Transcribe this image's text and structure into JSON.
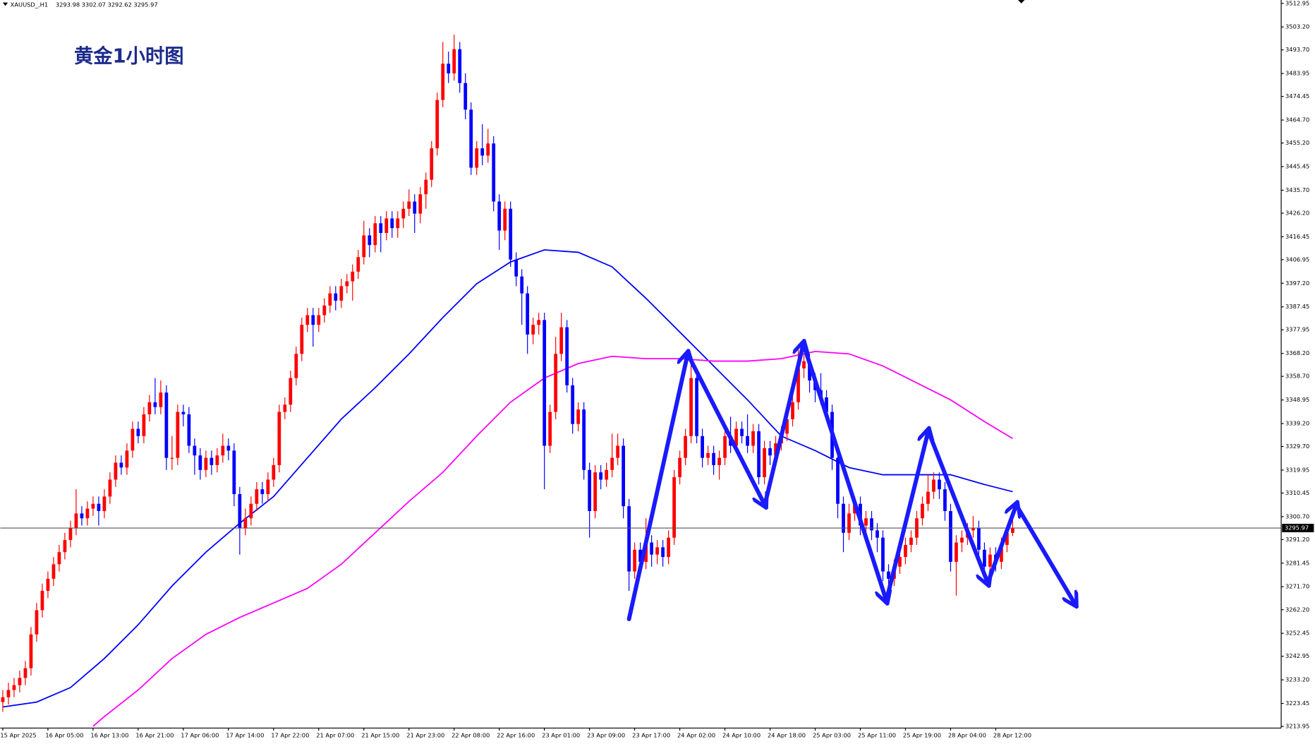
{
  "chart_data": {
    "type": "candlestick",
    "symbol": "XAUUSD_,H1",
    "title": "黄金1小时图",
    "categories": [
      "15 Apr 2025",
      null,
      null,
      null,
      null,
      null,
      null,
      null,
      "16 Apr 05:00",
      null,
      null,
      null,
      null,
      null,
      null,
      null,
      "16 Apr 13:00",
      null,
      null,
      null,
      null,
      null,
      null,
      null,
      "16 Apr 21:00",
      null,
      null,
      null,
      null,
      null,
      null,
      null,
      "17 Apr 06:00",
      null,
      null,
      null,
      null,
      null,
      null,
      null,
      "17 Apr 14:00",
      null,
      null,
      null,
      null,
      null,
      null,
      null,
      "17 Apr 22:00",
      null,
      null,
      null,
      null,
      null,
      null,
      null,
      "21 Apr 07:00",
      null,
      null,
      null,
      null,
      null,
      null,
      null,
      "21 Apr 15:00",
      null,
      null,
      null,
      null,
      null,
      null,
      null,
      "21 Apr 23:00",
      null,
      null,
      null,
      null,
      null,
      null,
      null,
      "22 Apr 08:00",
      null,
      null,
      null,
      null,
      null,
      null,
      null,
      "22 Apr 16:00",
      null,
      null,
      null,
      null,
      null,
      null,
      null,
      "23 Apr 01:00",
      null,
      null,
      null,
      null,
      null,
      null,
      null,
      "23 Apr 09:00",
      null,
      null,
      null,
      null,
      null,
      null,
      null,
      "23 Apr 17:00",
      null,
      null,
      null,
      null,
      null,
      null,
      null,
      "24 Apr 02:00",
      null,
      null,
      null,
      null,
      null,
      null,
      null,
      "24 Apr 10:00",
      null,
      null,
      null,
      null,
      null,
      null,
      null,
      "24 Apr 18:00",
      null,
      null,
      null,
      null,
      null,
      null,
      null,
      "25 Apr 03:00",
      null,
      null,
      null,
      null,
      null,
      null,
      null,
      "25 Apr 11:00",
      null,
      null,
      null,
      null,
      null,
      null,
      null,
      "25 Apr 19:00",
      null,
      null,
      null,
      null,
      null,
      null,
      null,
      "28 Apr 04:00",
      null,
      null,
      null,
      null,
      null,
      null,
      null,
      "28 Apr 12:00",
      null,
      null,
      null
    ],
    "open": [
      3224,
      3226,
      3229,
      3231,
      3234,
      3238,
      3252,
      3262,
      3270,
      3275,
      3281,
      3286,
      3291,
      3296,
      3302,
      3300,
      3304,
      3306,
      3303,
      3309,
      3316,
      3323,
      3321,
      3328,
      3337,
      3334,
      3343,
      3348,
      3346,
      3352,
      3325,
      3325,
      3344,
      3343,
      3330,
      3326,
      3320,
      3325,
      3322,
      3326,
      3330,
      3328,
      3310,
      3296,
      3300,
      3306,
      3312,
      3310,
      3316,
      3322,
      3344,
      3347,
      3358,
      3368,
      3380,
      3384,
      3380,
      3384,
      3388,
      3393,
      3390,
      3396,
      3398,
      3402,
      3408,
      3417,
      3413,
      3422,
      3418,
      3424,
      3420,
      3424,
      3428,
      3431,
      3426,
      3434,
      3440,
      3453,
      3473,
      3488,
      3484,
      3494,
      3480,
      3469,
      3445,
      3453,
      3450,
      3455,
      3431,
      3419,
      3428,
      3407,
      3400,
      3393,
      3376,
      3380,
      3382,
      3330,
      3344,
      3368,
      3379,
      3355,
      3339,
      3345,
      3320,
      3303,
      3319,
      3316,
      3320,
      3325,
      3330,
      3305,
      3278,
      3287,
      3282,
      3290,
      3285,
      3288,
      3284,
      3292,
      3317,
      3325,
      3334,
      3358,
      3334,
      3325,
      3327,
      3322,
      3325,
      3334,
      3330,
      3337,
      3334,
      3330,
      3336,
      3317,
      3329,
      3326,
      3331,
      3335,
      3341,
      3348,
      3362,
      3365,
      3357,
      3353,
      3350,
      3344,
      3325,
      3306,
      3294,
      3302,
      3306,
      3297,
      3300,
      3295,
      3292,
      3278,
      3275,
      3280,
      3284,
      3289,
      3292,
      3300,
      3306,
      3311,
      3316,
      3312,
      3303,
      3282,
      3290,
      3292,
      3295,
      3296,
      3287,
      3280,
      3285,
      3282,
      3289,
      3293.98
    ],
    "high": [
      3229,
      3232,
      3234,
      3237,
      3241,
      3255,
      3265,
      3273,
      3278,
      3284,
      3289,
      3294,
      3299,
      3312,
      3305,
      3307,
      3309,
      3309,
      3312,
      3319,
      3326,
      3326,
      3331,
      3340,
      3340,
      3346,
      3351,
      3358,
      3357,
      3355,
      3334,
      3347,
      3347,
      3346,
      3333,
      3329,
      3328,
      3328,
      3329,
      3335,
      3333,
      3331,
      3313,
      3304,
      3309,
      3315,
      3315,
      3319,
      3325,
      3347,
      3350,
      3361,
      3371,
      3383,
      3387,
      3387,
      3387,
      3391,
      3396,
      3396,
      3399,
      3401,
      3405,
      3411,
      3423,
      3420,
      3425,
      3425,
      3427,
      3427,
      3427,
      3431,
      3436,
      3434,
      3437,
      3443,
      3456,
      3476,
      3497,
      3493,
      3500,
      3497,
      3484,
      3472,
      3456,
      3463,
      3461,
      3458,
      3434,
      3431,
      3431,
      3410,
      3403,
      3396,
      3383,
      3385,
      3385,
      3347,
      3375,
      3385,
      3382,
      3358,
      3348,
      3348,
      3323,
      3322,
      3322,
      3323,
      3335,
      3335,
      3333,
      3308,
      3290,
      3290,
      3300,
      3293,
      3291,
      3291,
      3295,
      3320,
      3328,
      3337,
      3365,
      3361,
      3337,
      3330,
      3330,
      3328,
      3337,
      3342,
      3340,
      3340,
      3343,
      3339,
      3339,
      3332,
      3332,
      3334,
      3338,
      3344,
      3351,
      3372,
      3368,
      3368,
      3360,
      3360,
      3353,
      3347,
      3328,
      3309,
      3306,
      3309,
      3309,
      3303,
      3303,
      3298,
      3295,
      3281,
      3283,
      3287,
      3292,
      3295,
      3303,
      3309,
      3318,
      3319,
      3319,
      3315,
      3306,
      3293,
      3295,
      3298,
      3301,
      3299,
      3290,
      3288,
      3288,
      3292,
      3297,
      3302.07
    ],
    "low": [
      3220,
      3223,
      3226,
      3228,
      3231,
      3235,
      3249,
      3259,
      3267,
      3272,
      3278,
      3283,
      3288,
      3293,
      3297,
      3297,
      3301,
      3297,
      3300,
      3306,
      3313,
      3318,
      3318,
      3325,
      3331,
      3331,
      3340,
      3343,
      3343,
      3320,
      3320,
      3322,
      3338,
      3327,
      3318,
      3316,
      3317,
      3318,
      3319,
      3323,
      3324,
      3305,
      3285,
      3293,
      3297,
      3303,
      3306,
      3307,
      3313,
      3319,
      3341,
      3344,
      3355,
      3365,
      3377,
      3371,
      3377,
      3381,
      3385,
      3386,
      3387,
      3393,
      3390,
      3399,
      3405,
      3408,
      3410,
      3410,
      3415,
      3416,
      3416,
      3420,
      3425,
      3418,
      3422,
      3428,
      3437,
      3450,
      3470,
      3480,
      3481,
      3476,
      3465,
      3442,
      3442,
      3446,
      3447,
      3427,
      3411,
      3415,
      3404,
      3396,
      3380,
      3368,
      3372,
      3376,
      3312,
      3327,
      3341,
      3365,
      3352,
      3335,
      3336,
      3316,
      3292,
      3300,
      3312,
      3313,
      3317,
      3322,
      3300,
      3270,
      3275,
      3279,
      3279,
      3280,
      3281,
      3280,
      3281,
      3289,
      3314,
      3322,
      3331,
      3331,
      3321,
      3322,
      3318,
      3316,
      3322,
      3327,
      3327,
      3331,
      3327,
      3327,
      3314,
      3314,
      3322,
      3323,
      3328,
      3332,
      3338,
      3345,
      3358,
      3352,
      3348,
      3347,
      3340,
      3320,
      3300,
      3286,
      3291,
      3299,
      3293,
      3293,
      3291,
      3286,
      3274,
      3270,
      3272,
      3277,
      3281,
      3286,
      3289,
      3297,
      3303,
      3308,
      3308,
      3299,
      3278,
      3268,
      3286,
      3289,
      3292,
      3283,
      3276,
      3277,
      3278,
      3279,
      3286,
      3292.62
    ],
    "close": [
      3226,
      3229,
      3231,
      3234,
      3238,
      3252,
      3262,
      3270,
      3275,
      3281,
      3286,
      3291,
      3296,
      3302,
      3300,
      3304,
      3306,
      3303,
      3309,
      3316,
      3323,
      3321,
      3328,
      3337,
      3334,
      3343,
      3348,
      3346,
      3352,
      3325,
      3325,
      3344,
      3343,
      3330,
      3326,
      3320,
      3325,
      3322,
      3326,
      3330,
      3328,
      3310,
      3296,
      3300,
      3306,
      3312,
      3310,
      3316,
      3322,
      3344,
      3347,
      3358,
      3368,
      3380,
      3384,
      3380,
      3384,
      3388,
      3393,
      3390,
      3396,
      3398,
      3402,
      3408,
      3417,
      3413,
      3422,
      3418,
      3424,
      3420,
      3424,
      3428,
      3431,
      3426,
      3434,
      3440,
      3453,
      3473,
      3488,
      3484,
      3494,
      3480,
      3469,
      3445,
      3453,
      3450,
      3455,
      3431,
      3419,
      3428,
      3407,
      3400,
      3393,
      3376,
      3380,
      3382,
      3330,
      3344,
      3368,
      3379,
      3355,
      3339,
      3345,
      3320,
      3303,
      3319,
      3316,
      3320,
      3325,
      3330,
      3305,
      3278,
      3287,
      3282,
      3290,
      3285,
      3288,
      3284,
      3292,
      3317,
      3325,
      3334,
      3358,
      3334,
      3325,
      3327,
      3322,
      3325,
      3334,
      3330,
      3337,
      3334,
      3330,
      3336,
      3317,
      3329,
      3326,
      3331,
      3335,
      3341,
      3348,
      3362,
      3365,
      3357,
      3353,
      3350,
      3344,
      3325,
      3306,
      3294,
      3302,
      3306,
      3297,
      3300,
      3295,
      3292,
      3278,
      3275,
      3280,
      3284,
      3289,
      3292,
      3300,
      3306,
      3311,
      3316,
      3312,
      3303,
      3282,
      3290,
      3292,
      3295,
      3296,
      3287,
      3280,
      3285,
      3282,
      3289,
      3293.98,
      3295.97
    ],
    "up_color": "#ff0000",
    "down_color": "#0000ff",
    "series": [
      {
        "color": "#0000ff",
        "x": [
          0,
          6,
          12,
          18,
          24,
          30,
          36,
          42,
          48,
          54,
          60,
          66,
          72,
          78,
          84,
          90,
          96,
          102,
          108,
          114,
          120,
          126,
          132,
          138,
          144,
          150,
          156,
          162,
          168,
          174,
          179
        ],
        "values": [
          3222,
          3224,
          3230,
          3242,
          3256,
          3272,
          3286,
          3298,
          3309,
          3325,
          3341,
          3354,
          3368,
          3383,
          3397,
          3406,
          3411,
          3410,
          3404,
          3391,
          3377,
          3363,
          3349,
          3334,
          3328,
          3321,
          3318,
          3318,
          3318,
          3314,
          3311
        ]
      },
      {
        "color": "#ff00ff",
        "x": [
          16,
          18,
          24,
          30,
          36,
          42,
          48,
          54,
          60,
          66,
          72,
          78,
          84,
          90,
          96,
          102,
          108,
          114,
          120,
          126,
          132,
          138,
          144,
          150,
          156,
          162,
          168,
          174,
          179
        ],
        "values": [
          3214,
          3218,
          3229,
          3242,
          3252,
          3259,
          3265,
          3271,
          3281,
          3294,
          3307,
          3319,
          3334,
          3348,
          3358,
          3364,
          3367,
          3366,
          3366,
          3365,
          3365,
          3366,
          3369,
          3368,
          3363,
          3356,
          3349,
          3340,
          3333
        ]
      }
    ],
    "ylim": [
      3213.95,
      3512.95
    ],
    "yticks": [
      3512.95,
      {
        "value": 3503.2,
        "label": "3503.20"
      },
      {
        "value": 3493.7,
        "label": "3493.70"
      },
      3483.95,
      3474.45,
      {
        "value": 3464.7,
        "label": "3464.70"
      },
      {
        "value": 3455.2,
        "label": "3455.20"
      },
      3445.45,
      {
        "value": 3435.7,
        "label": "3435.70"
      },
      {
        "value": 3426.2,
        "label": "3426.20"
      },
      3416.45,
      3406.95,
      {
        "value": 3397.2,
        "label": "3397.20"
      },
      3387.45,
      3377.95,
      {
        "value": 3368.2,
        "label": "3368.20"
      },
      {
        "value": 3358.7,
        "label": "3358.70"
      },
      3348.95,
      {
        "value": 3339.2,
        "label": "3339.20"
      },
      {
        "value": 3329.7,
        "label": "3329.70"
      },
      3319.95,
      3310.45,
      {
        "value": 3300.7,
        "label": "3300.70"
      },
      {
        "value": 3291.2,
        "label": "3291.20"
      },
      3281.45,
      {
        "value": 3271.7,
        "label": "3271.70"
      },
      {
        "value": 3262.2,
        "label": "3262.20"
      },
      3252.45,
      3242.95,
      {
        "value": 3233.2,
        "label": "3233.20"
      },
      3223.45,
      3213.95
    ],
    "grid": false
  }
}
